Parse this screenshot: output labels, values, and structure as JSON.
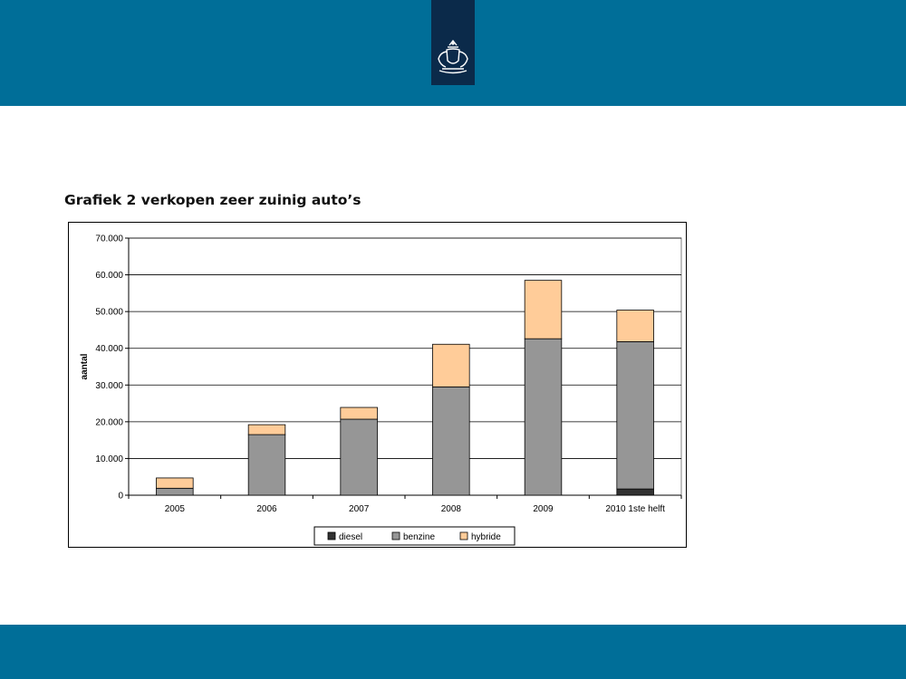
{
  "colors": {
    "band": "#006e98",
    "logo_bg": "#0b2a4a",
    "diesel": "#333333",
    "benzine": "#969696",
    "hybride": "#ffcc99"
  },
  "icons": {
    "logo": "royal-coat-of-arms-icon"
  },
  "title": "Grafiek 2 verkopen zeer zuinig auto’s",
  "chart_data": {
    "type": "bar",
    "stacked": true,
    "categories": [
      "2005",
      "2006",
      "2007",
      "2008",
      "2009",
      "2010 1ste helft"
    ],
    "series": [
      {
        "name": "diesel",
        "values": [
          0,
          0,
          0,
          0,
          0,
          1700
        ]
      },
      {
        "name": "benzine",
        "values": [
          1900,
          16500,
          20700,
          29500,
          42600,
          40100
        ]
      },
      {
        "name": "hybride",
        "values": [
          2800,
          2700,
          3200,
          11600,
          15900,
          8600
        ]
      }
    ],
    "ylabel": "aantal",
    "ylim": [
      0,
      70000
    ],
    "yticks": [
      0,
      10000,
      20000,
      30000,
      40000,
      50000,
      60000,
      70000
    ],
    "ytick_labels": [
      "0",
      "10.000",
      "20.000",
      "30.000",
      "40.000",
      "50.000",
      "60.000",
      "70.000"
    ],
    "grid": true,
    "legend": "bottom"
  }
}
